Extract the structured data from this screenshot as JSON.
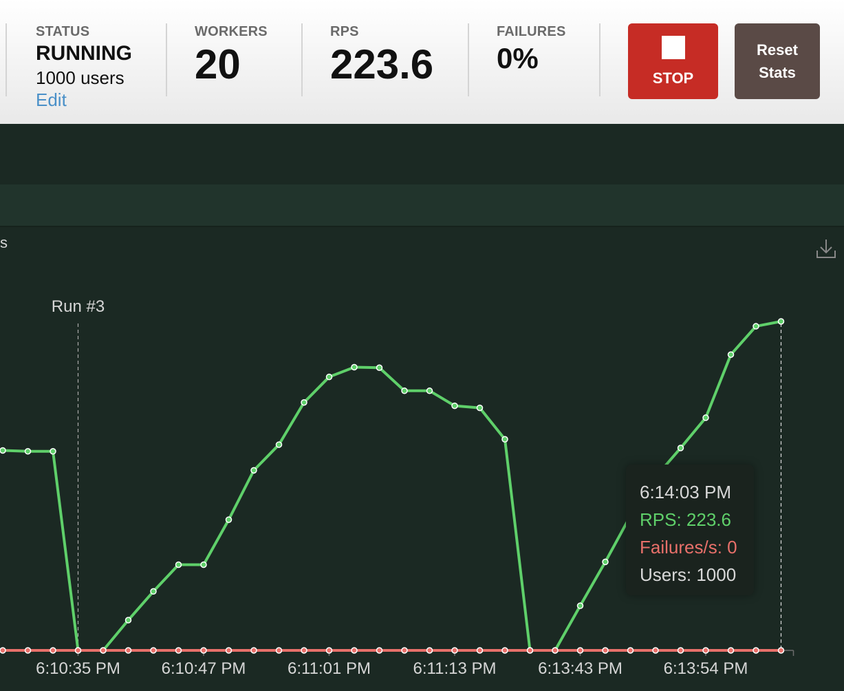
{
  "header": {
    "status": {
      "label": "STATUS",
      "value": "RUNNING",
      "users": "1000 users",
      "edit": "Edit"
    },
    "workers": {
      "label": "WORKERS",
      "value": "20"
    },
    "rps": {
      "label": "RPS",
      "value": "223.6"
    },
    "failures": {
      "label": "FAILURES",
      "value": "0%"
    },
    "stop_label": "STOP",
    "reset_label_line1": "Reset",
    "reset_label_line2": "Stats"
  },
  "chart": {
    "title_fragment": "s",
    "annotation": "Run #3",
    "download_icon": "download-icon"
  },
  "chart_data": {
    "type": "line",
    "title": "",
    "x_tick_labels": [
      "6:10:35 PM",
      "6:10:47 PM",
      "6:11:01 PM",
      "6:11:13 PM",
      "6:13:43 PM",
      "6:13:54 PM"
    ],
    "point_count": 32,
    "marker_index": 3,
    "tick_indices": [
      3,
      8,
      13,
      18,
      23,
      28
    ],
    "series": [
      {
        "name": "RPS",
        "color": "#5fd06a",
        "values": [
          155.9,
          155.2,
          155.2,
          0,
          0,
          23.6,
          46.0,
          66.8,
          66.8,
          101.9,
          140.4,
          160.4,
          193.3,
          213.2,
          220.8,
          220.4,
          202.4,
          202.4,
          190.7,
          189.1,
          164.6,
          0,
          0,
          34.8,
          69.0,
          104.9,
          135.1,
          157.8,
          181.4,
          230.6,
          252.7,
          256.5
        ]
      },
      {
        "name": "Failures/s",
        "color": "#e8706a",
        "values": [
          0,
          0,
          0,
          0,
          0,
          0,
          0,
          0,
          0,
          0,
          0,
          0,
          0,
          0,
          0,
          0,
          0,
          0,
          0,
          0,
          0,
          0,
          0,
          0,
          0,
          0,
          0,
          0,
          0,
          0,
          0,
          0
        ]
      }
    ],
    "ylim": [
      0,
      330
    ]
  },
  "tooltip": {
    "time": "6:14:03 PM",
    "rps": "RPS: 223.6",
    "failures": "Failures/s: 0",
    "users": "Users: 1000"
  }
}
